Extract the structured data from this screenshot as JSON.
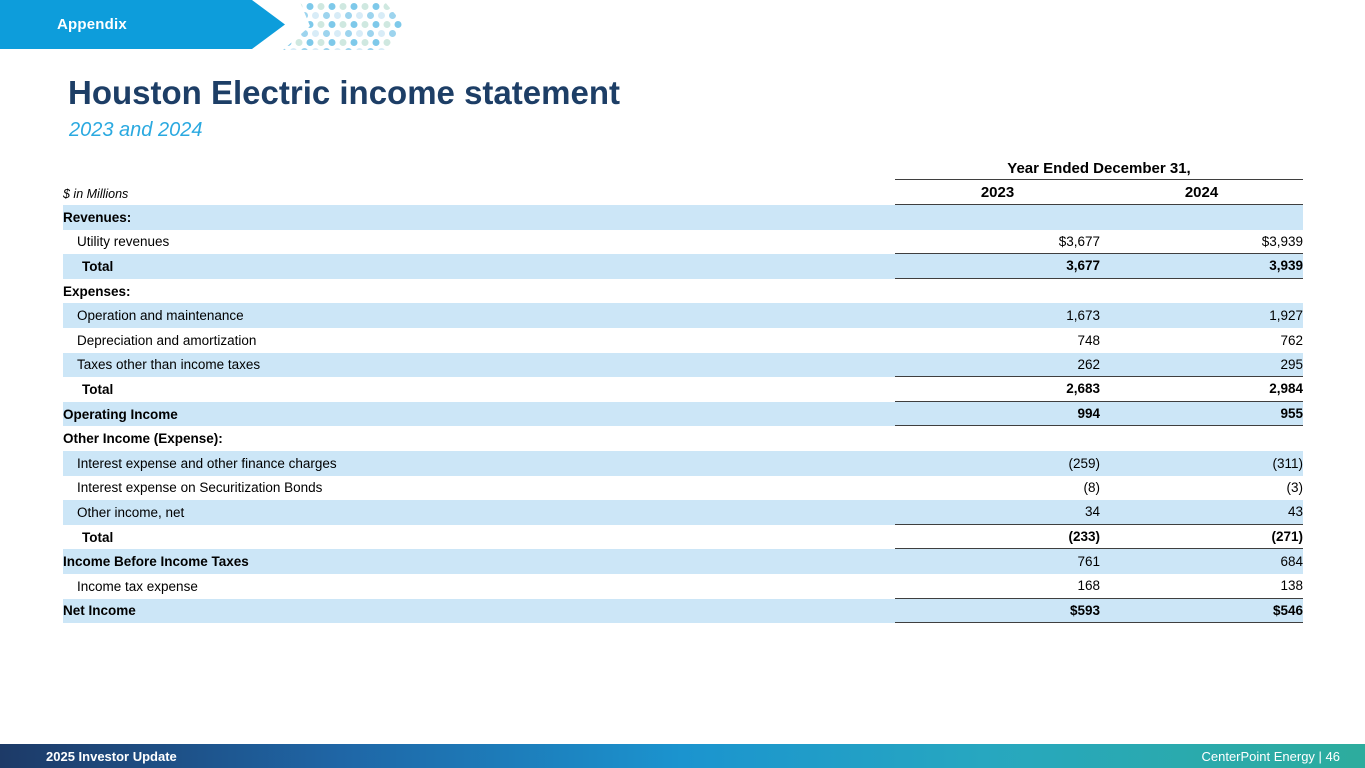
{
  "slide": {
    "banner": {
      "label": "Appendix"
    },
    "title": "Houston Electric income statement",
    "subtitle": "2023 and 2024"
  },
  "table": {
    "units_label": "$ in Millions",
    "period_header": "Year Ended December 31,",
    "columns": [
      "2023",
      "2024"
    ],
    "rows": [
      {
        "label": "Revenues:",
        "v2023": "",
        "v2024": "",
        "label_bold": true,
        "values_bold": false,
        "indent": 0,
        "shaded": true,
        "rule": false
      },
      {
        "label": "Utility revenues",
        "v2023": "$3,677",
        "v2024": "$3,939",
        "label_bold": false,
        "values_bold": false,
        "indent": 1,
        "shaded": false,
        "rule": true
      },
      {
        "label": "Total",
        "v2023": "3,677",
        "v2024": "3,939",
        "label_bold": true,
        "values_bold": true,
        "indent": 2,
        "shaded": true,
        "rule": true
      },
      {
        "label": "Expenses:",
        "v2023": "",
        "v2024": "",
        "label_bold": true,
        "values_bold": false,
        "indent": 0,
        "shaded": false,
        "rule": false
      },
      {
        "label": "Operation and maintenance",
        "v2023": "1,673",
        "v2024": "1,927",
        "label_bold": false,
        "values_bold": false,
        "indent": 1,
        "shaded": true,
        "rule": false
      },
      {
        "label": "Depreciation and amortization",
        "v2023": "748",
        "v2024": "762",
        "label_bold": false,
        "values_bold": false,
        "indent": 1,
        "shaded": false,
        "rule": false
      },
      {
        "label": "Taxes other than income taxes",
        "v2023": "262",
        "v2024": "295",
        "label_bold": false,
        "values_bold": false,
        "indent": 1,
        "shaded": true,
        "rule": true
      },
      {
        "label": "Total",
        "v2023": "2,683",
        "v2024": "2,984",
        "label_bold": true,
        "values_bold": true,
        "indent": 2,
        "shaded": false,
        "rule": true
      },
      {
        "label": "Operating Income",
        "v2023": "994",
        "v2024": "955",
        "label_bold": true,
        "values_bold": true,
        "indent": 0,
        "shaded": true,
        "rule": true
      },
      {
        "label": "Other Income (Expense):",
        "v2023": "",
        "v2024": "",
        "label_bold": true,
        "values_bold": false,
        "indent": 0,
        "shaded": false,
        "rule": false
      },
      {
        "label": "Interest expense and other finance charges",
        "v2023": "(259)",
        "v2024": "(311)",
        "label_bold": false,
        "values_bold": false,
        "indent": 1,
        "shaded": true,
        "rule": false
      },
      {
        "label": "Interest expense on Securitization Bonds",
        "v2023": "(8)",
        "v2024": "(3)",
        "label_bold": false,
        "values_bold": false,
        "indent": 1,
        "shaded": false,
        "rule": false
      },
      {
        "label": "Other income, net",
        "v2023": "34",
        "v2024": "43",
        "label_bold": false,
        "values_bold": false,
        "indent": 1,
        "shaded": true,
        "rule": true
      },
      {
        "label": "Total",
        "v2023": "(233)",
        "v2024": "(271)",
        "label_bold": true,
        "values_bold": true,
        "indent": 2,
        "shaded": false,
        "rule": true
      },
      {
        "label": "Income Before Income Taxes",
        "v2023": "761",
        "v2024": "684",
        "label_bold": true,
        "values_bold": false,
        "indent": 0,
        "shaded": true,
        "rule": false
      },
      {
        "label": "Income tax expense",
        "v2023": "168",
        "v2024": "138",
        "label_bold": false,
        "values_bold": false,
        "indent": 1,
        "shaded": false,
        "rule": true
      },
      {
        "label": "Net Income",
        "v2023": "$593",
        "v2024": "$546",
        "label_bold": true,
        "values_bold": true,
        "indent": 0,
        "shaded": true,
        "rule": true
      }
    ]
  },
  "footer": {
    "left": "2025 Investor Update",
    "right": "CenterPoint Energy | 46"
  },
  "colors": {
    "banner_blue": "#0d9ddb",
    "row_shade": "#cce6f7",
    "title_navy": "#1d3e66",
    "subtitle_blue": "#2aa9e0",
    "rule_gray": "#3f3f3f",
    "footer_gradient_start": "#1d3a67",
    "footer_gradient_end": "#2dac9d"
  }
}
